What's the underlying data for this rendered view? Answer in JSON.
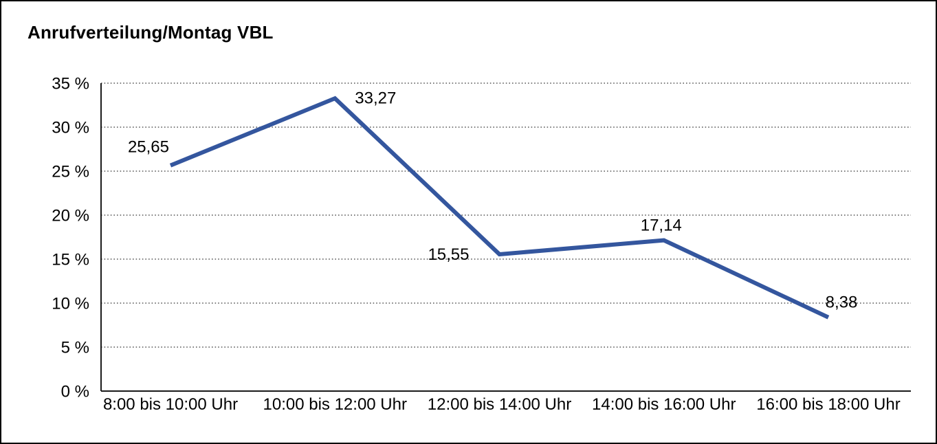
{
  "header": {
    "title": "Anrufverteilung/Montag VBL"
  },
  "chart_data": {
    "type": "line",
    "title": "Anrufverteilung/Montag VBL",
    "categories": [
      "8:00 bis 10:00 Uhr",
      "10:00 bis 12:00 Uhr",
      "12:00 bis 14:00 Uhr",
      "14:00 bis 16:00 Uhr",
      "16:00 bis 18:00 Uhr"
    ],
    "series": [
      {
        "name": "Anrufverteilung Montag VBL",
        "values": [
          25.65,
          33.27,
          15.55,
          17.14,
          8.38
        ],
        "value_labels": [
          "25,65",
          "33,27",
          "15,55",
          "17,14",
          "8,38"
        ]
      }
    ],
    "xlabel": "",
    "ylabel": "",
    "ylim": [
      0,
      35
    ],
    "y_tick_values": [
      0,
      5,
      10,
      15,
      20,
      25,
      30,
      35
    ],
    "y_tick_labels": [
      "0 %",
      "5 %",
      "10 %",
      "15 %",
      "20 %",
      "25 %",
      "30 %",
      "35 %"
    ],
    "grid": "horizontal-dotted",
    "legend": "none",
    "colors": {
      "line": "#34569E",
      "text": "#000000",
      "gridline": "#555555",
      "axis": "#1a1a1a"
    }
  }
}
